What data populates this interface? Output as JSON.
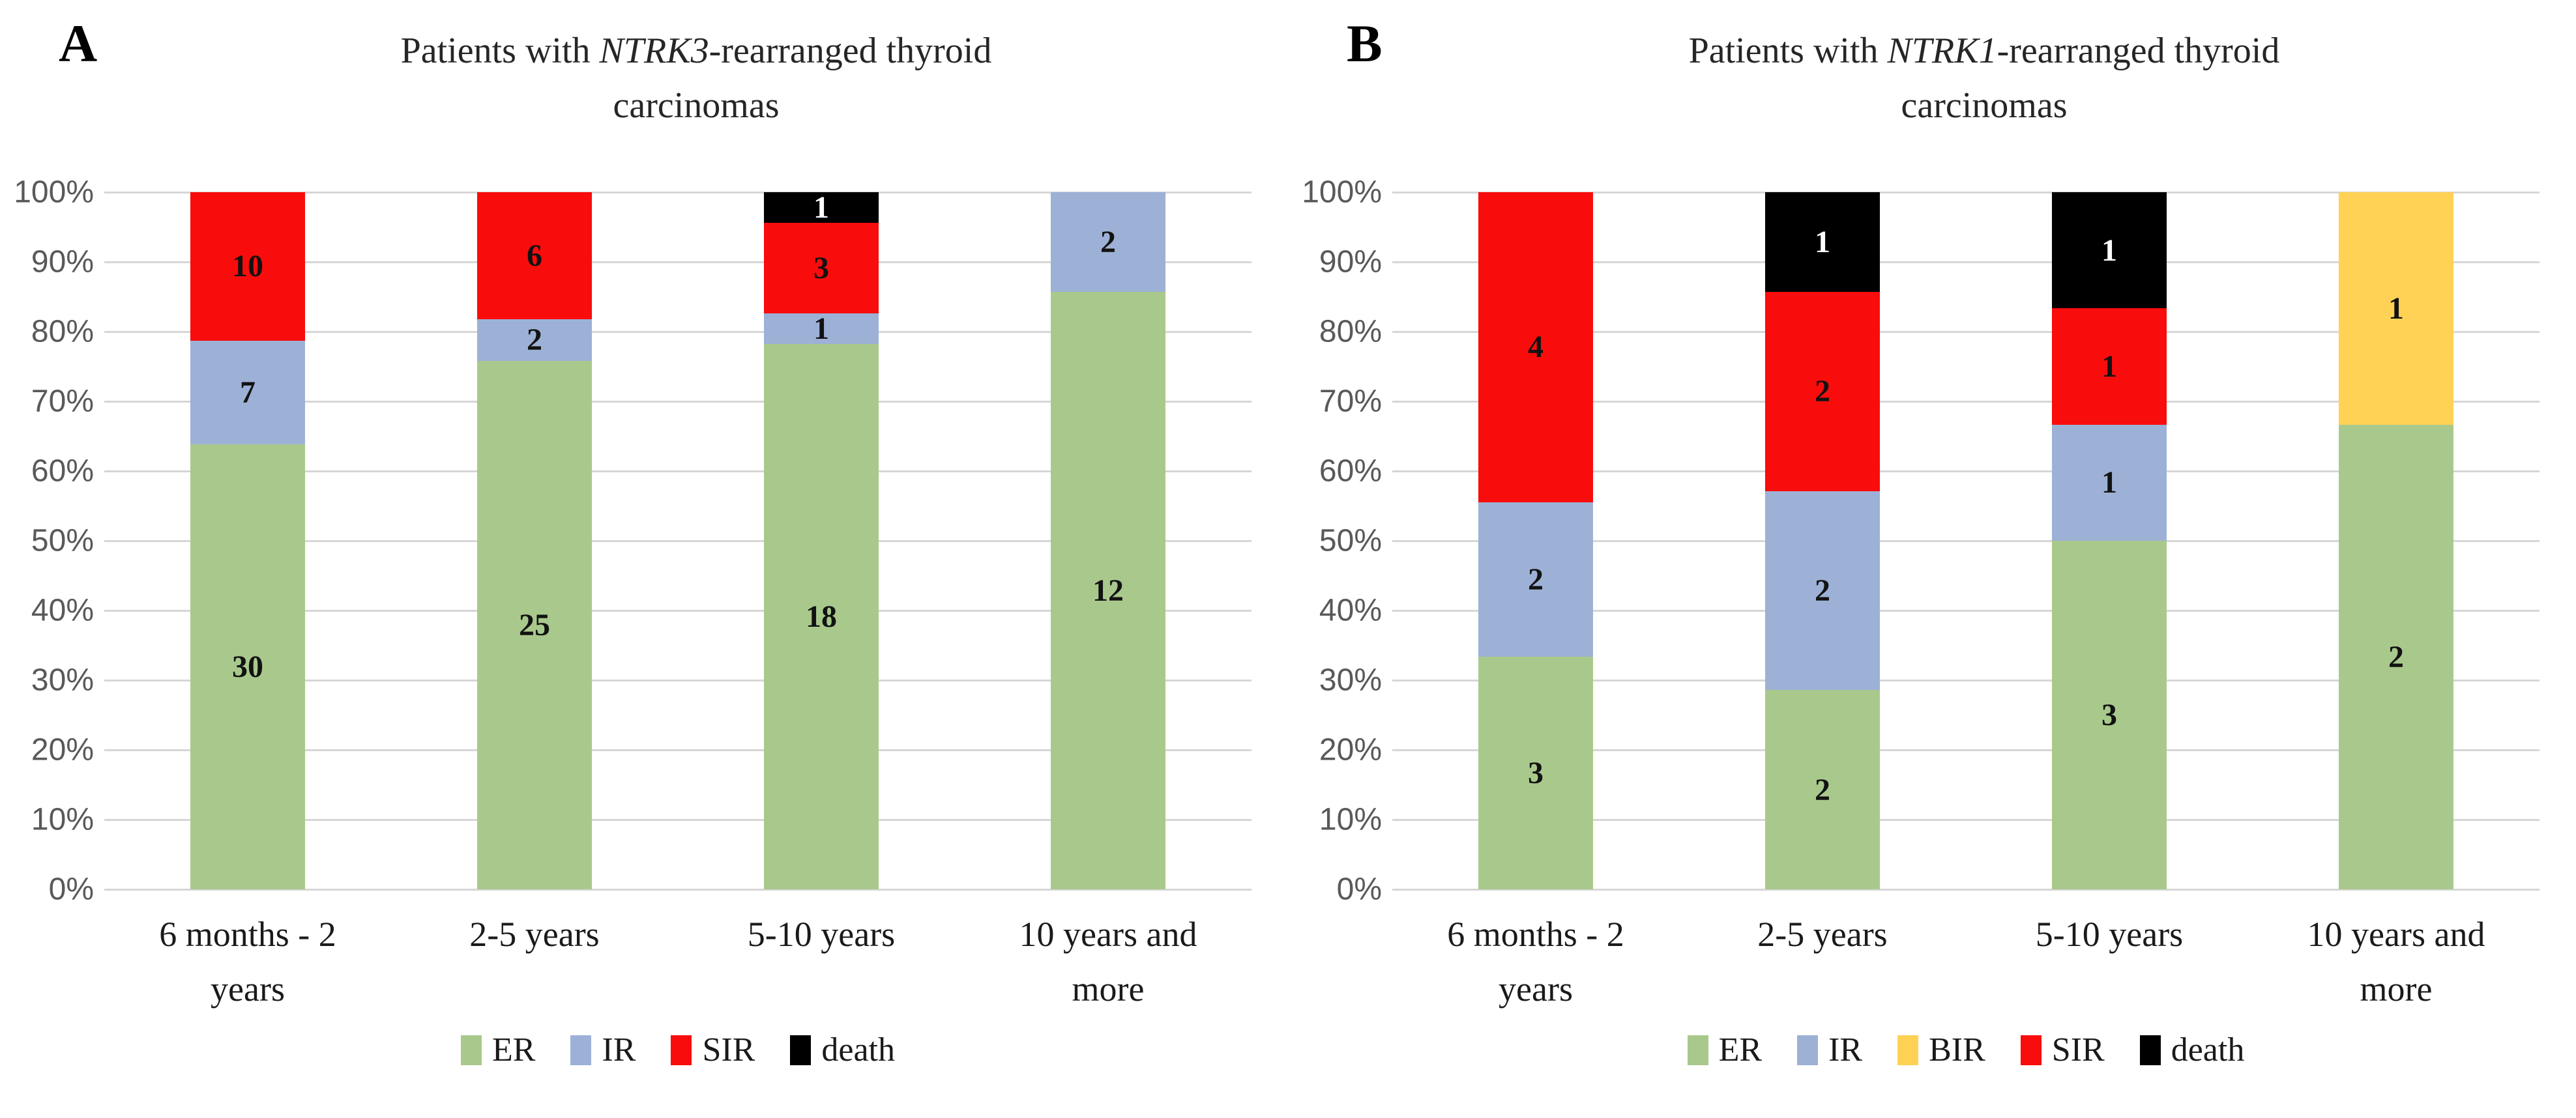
{
  "style": {
    "axis_text_color": "#595959",
    "gridline_color": "#D6D6D6",
    "label_on_light": "#121212",
    "label_on_dark": "#FFFFFF",
    "title_color": "#262626"
  },
  "chart_data": [
    {
      "type": "bar",
      "subtype": "stacked-100-percent",
      "panel_label": "A",
      "title_prefix": "Patients with ",
      "title_gene": "NTRK3",
      "title_suffix": "-rearranged thyroid",
      "title_line2": "carcinomas",
      "title_full": "Patients with NTRK3-rearranged thyroid carcinomas",
      "categories": [
        "6 months - 2\nyears",
        "2-5 years",
        "5-10 years",
        "10 years and\nmore"
      ],
      "series": [
        {
          "name": "ER",
          "color": "#A9C98C",
          "values": [
            30,
            25,
            18,
            12
          ]
        },
        {
          "name": "IR",
          "color": "#9DB1D6",
          "values": [
            7,
            2,
            1,
            2
          ]
        },
        {
          "name": "SIR",
          "color": "#F90C0C",
          "values": [
            10,
            6,
            3,
            0
          ]
        },
        {
          "name": "death",
          "color": "#000000",
          "values": [
            0,
            0,
            1,
            0
          ]
        }
      ],
      "y_ticks": [
        "100%",
        "90%",
        "80%",
        "70%",
        "60%",
        "50%",
        "40%",
        "30%",
        "20%",
        "10%",
        "0%"
      ],
      "xlabel": "",
      "ylabel": "",
      "ylim_percent": [
        0,
        100
      ],
      "grid": true,
      "legend_position": "bottom"
    },
    {
      "type": "bar",
      "subtype": "stacked-100-percent",
      "panel_label": "B",
      "title_prefix": "Patients with ",
      "title_gene": "NTRK1",
      "title_suffix": "-rearranged thyroid",
      "title_line2": "carcinomas",
      "title_full": "Patients with NTRK1-rearranged thyroid carcinomas",
      "categories": [
        "6 months - 2\nyears",
        "2-5 years",
        "5-10 years",
        "10 years and\nmore"
      ],
      "series": [
        {
          "name": "ER",
          "color": "#A9C98C",
          "values": [
            3,
            2,
            3,
            2
          ]
        },
        {
          "name": "IR",
          "color": "#9DB1D6",
          "values": [
            2,
            2,
            1,
            0
          ]
        },
        {
          "name": "BIR",
          "color": "#FFD256",
          "values": [
            0,
            0,
            0,
            1
          ]
        },
        {
          "name": "SIR",
          "color": "#F90C0C",
          "values": [
            4,
            2,
            1,
            0
          ]
        },
        {
          "name": "death",
          "color": "#000000",
          "values": [
            0,
            1,
            1,
            0
          ]
        }
      ],
      "y_ticks": [
        "100%",
        "90%",
        "80%",
        "70%",
        "60%",
        "50%",
        "40%",
        "30%",
        "20%",
        "10%",
        "0%"
      ],
      "xlabel": "",
      "ylabel": "",
      "ylim_percent": [
        0,
        100
      ],
      "grid": true,
      "legend_position": "bottom"
    }
  ]
}
